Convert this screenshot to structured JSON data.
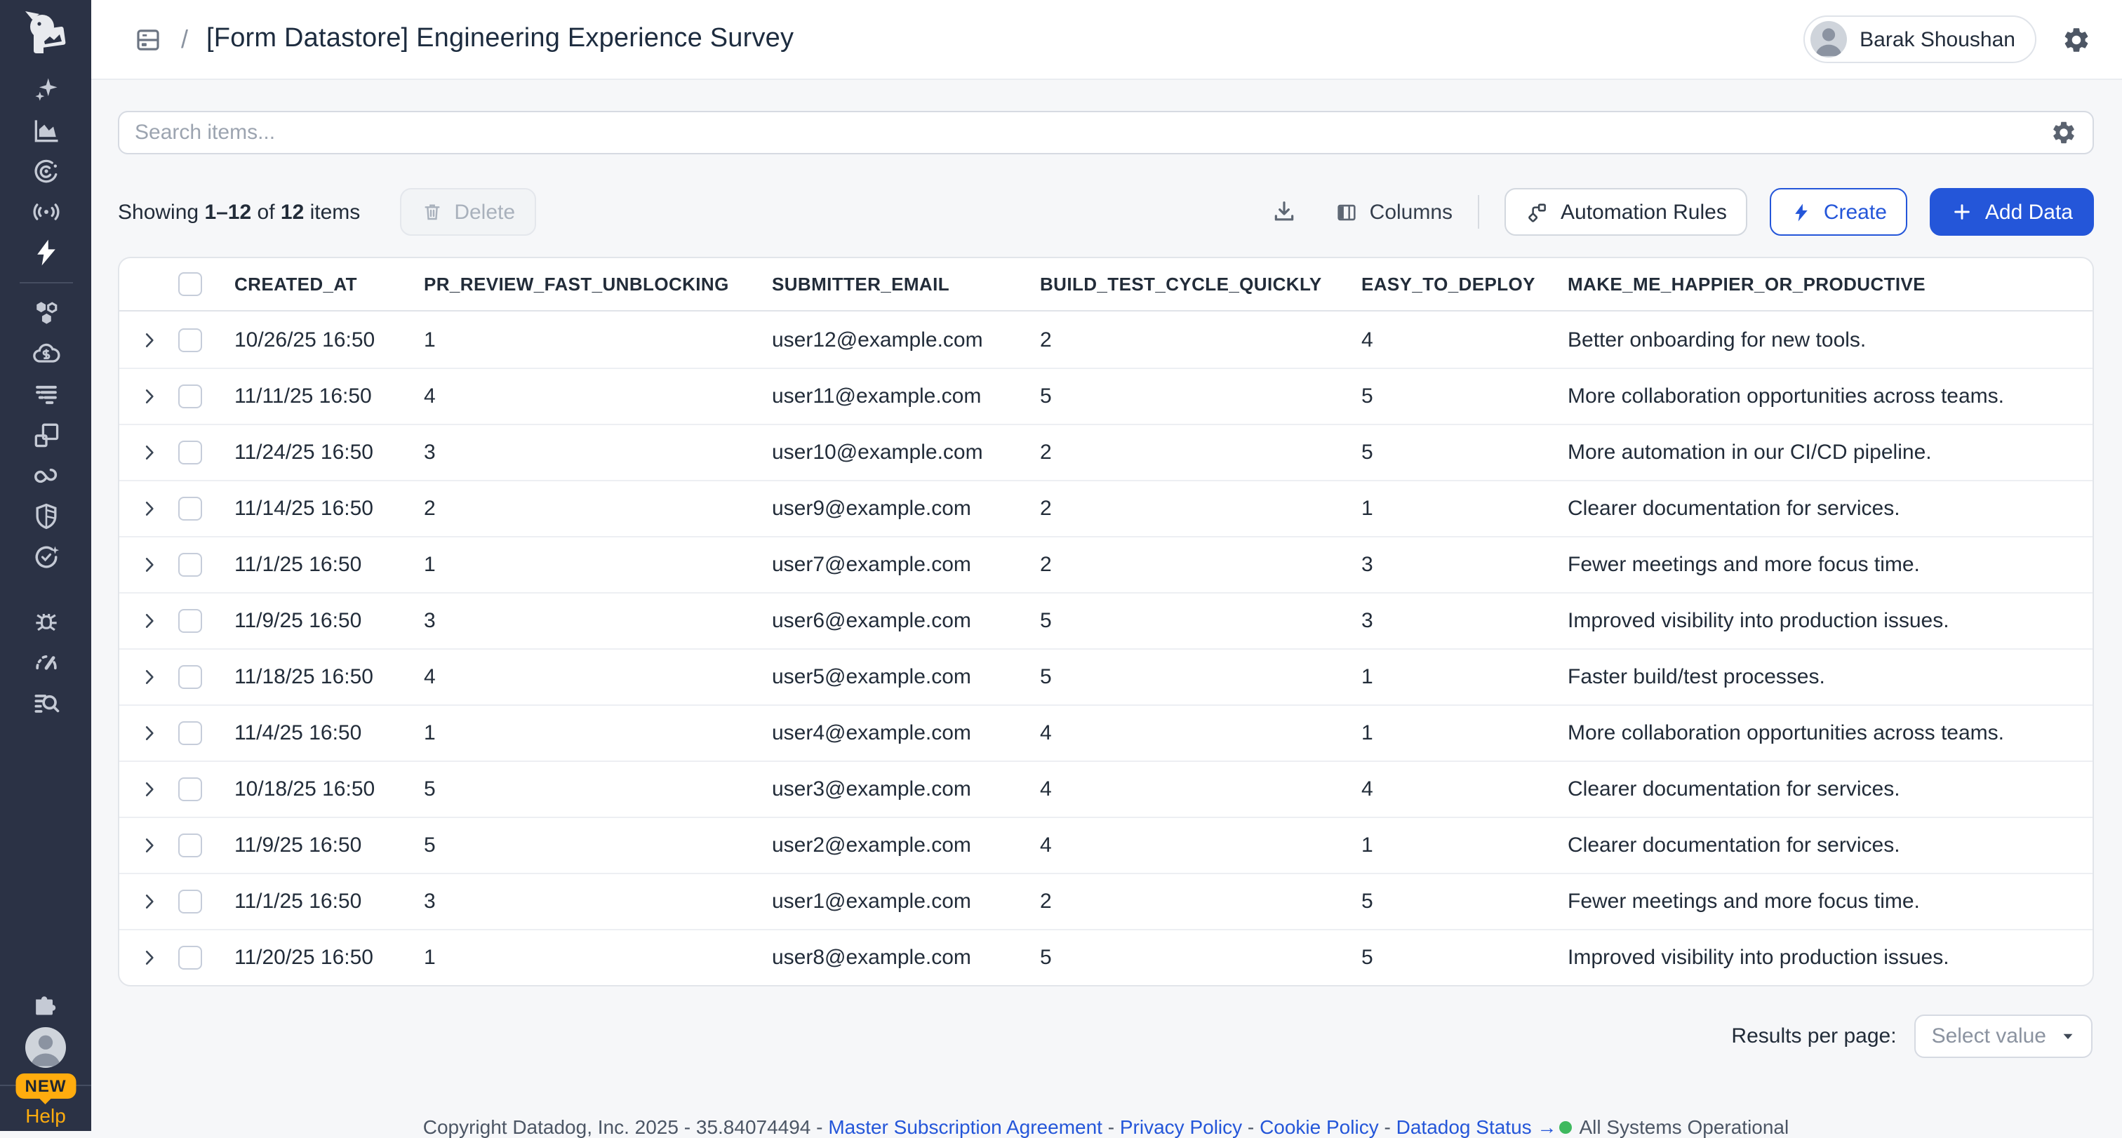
{
  "header": {
    "title": "[Form Datastore] Engineering Experience Survey",
    "breadcrumb_separator": "/",
    "user_name": "Barak Shoushan"
  },
  "search": {
    "placeholder": "Search items..."
  },
  "toolbar": {
    "showing": {
      "prefix": "Showing ",
      "range": "1–12",
      "middle": " of ",
      "total": "12",
      "suffix": " items"
    },
    "delete_label": "Delete",
    "columns_label": "Columns",
    "automation_label": "Automation Rules",
    "create_label": "Create",
    "add_data_label": "Add Data"
  },
  "table": {
    "columns": [
      "CREATED_AT",
      "PR_REVIEW_FAST_UNBLOCKING",
      "SUBMITTER_EMAIL",
      "BUILD_TEST_CYCLE_QUICKLY",
      "EASY_TO_DEPLOY",
      "MAKE_ME_HAPPIER_OR_PRODUCTIVE"
    ],
    "rows": [
      [
        "10/26/25 16:50",
        "1",
        "user12@example.com",
        "2",
        "4",
        "Better onboarding for new tools."
      ],
      [
        "11/11/25 16:50",
        "4",
        "user11@example.com",
        "5",
        "5",
        "More collaboration opportunities across teams."
      ],
      [
        "11/24/25 16:50",
        "3",
        "user10@example.com",
        "2",
        "5",
        "More automation in our CI/CD pipeline."
      ],
      [
        "11/14/25 16:50",
        "2",
        "user9@example.com",
        "2",
        "1",
        "Clearer documentation for services."
      ],
      [
        "11/1/25 16:50",
        "1",
        "user7@example.com",
        "2",
        "3",
        "Fewer meetings and more focus time."
      ],
      [
        "11/9/25 16:50",
        "3",
        "user6@example.com",
        "5",
        "3",
        "Improved visibility into production issues."
      ],
      [
        "11/18/25 16:50",
        "4",
        "user5@example.com",
        "5",
        "1",
        "Faster build/test processes."
      ],
      [
        "11/4/25 16:50",
        "1",
        "user4@example.com",
        "4",
        "1",
        "More collaboration opportunities across teams."
      ],
      [
        "10/18/25 16:50",
        "5",
        "user3@example.com",
        "4",
        "4",
        "Clearer documentation for services."
      ],
      [
        "11/9/25 16:50",
        "5",
        "user2@example.com",
        "4",
        "1",
        "Clearer documentation for services."
      ],
      [
        "11/1/25 16:50",
        "3",
        "user1@example.com",
        "2",
        "5",
        "Fewer meetings and more focus time."
      ],
      [
        "11/20/25 16:50",
        "1",
        "user8@example.com",
        "5",
        "5",
        "Improved visibility into production issues."
      ]
    ]
  },
  "pagination": {
    "label": "Results per page:",
    "select_value": "Select value"
  },
  "footer": {
    "copyright": "Copyright Datadog, Inc. 2025",
    "version": "35.84074494",
    "separator": " - ",
    "links": [
      "Master Subscription Agreement",
      "Privacy Policy",
      "Cookie Policy",
      "Datadog Status →"
    ],
    "status": "All Systems Operational"
  },
  "sidebar": {
    "new_badge": "NEW",
    "help_label": "Help",
    "nav_icons": [
      "sparkles-icon",
      "metrics-icon",
      "watchdog-icon",
      "llm-observability-icon",
      "bolt-icon",
      "integrations-hex-icon",
      "cloud-cost-icon",
      "logs-icon",
      "dashboards-icon",
      "ci-cd-icon",
      "security-icon",
      "service-management-icon",
      "error-tracking-icon",
      "monitoring-gauge-icon",
      "log-search-icon",
      "puzzle-icon"
    ]
  },
  "colors": {
    "primary_blue": "#2456d9",
    "sidebar_bg": "#2b3245",
    "accent_orange": "#ffac0e",
    "status_green": "#3fb95f",
    "page_bg": "#f6f7f9"
  }
}
